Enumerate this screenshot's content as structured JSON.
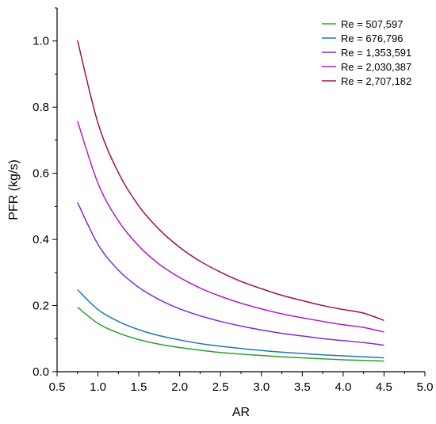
{
  "chart_data": {
    "type": "line",
    "xlabel": "AR",
    "ylabel": "PFR (kg/s)",
    "xlim": [
      0.5,
      5.0
    ],
    "ylim": [
      0.0,
      1.1
    ],
    "xticks": [
      0.5,
      1.0,
      1.5,
      2.0,
      2.5,
      3.0,
      3.5,
      4.0,
      4.5,
      5.0
    ],
    "xtick_labels": [
      "0.5",
      "1.0",
      "1.5",
      "2.0",
      "2.5",
      "3.0",
      "3.5",
      "4.0",
      "4.5",
      "5.0"
    ],
    "yticks": [
      0.0,
      0.2,
      0.4,
      0.6,
      0.8,
      1.0
    ],
    "ytick_labels": [
      "0.0",
      "0.2",
      "0.4",
      "0.6",
      "0.8",
      "1.0"
    ],
    "grid": false,
    "legend_position": "top-right",
    "x": [
      0.75,
      1.0,
      1.25,
      1.5,
      1.75,
      2.0,
      2.25,
      2.5,
      2.75,
      3.0,
      3.25,
      3.5,
      3.75,
      4.0,
      4.25,
      4.5
    ],
    "series": [
      {
        "name": "Re = 507,597",
        "color": "#2ca02c",
        "values": [
          0.195,
          0.146,
          0.117,
          0.097,
          0.083,
          0.073,
          0.065,
          0.058,
          0.053,
          0.049,
          0.045,
          0.042,
          0.039,
          0.036,
          0.034,
          0.032
        ]
      },
      {
        "name": "Re = 676,796",
        "color": "#1f77b4",
        "values": [
          0.248,
          0.188,
          0.152,
          0.127,
          0.109,
          0.096,
          0.085,
          0.077,
          0.07,
          0.064,
          0.059,
          0.055,
          0.051,
          0.048,
          0.045,
          0.042
        ]
      },
      {
        "name": "Re = 1,353,591",
        "color": "#7b2fd6",
        "values": [
          0.512,
          0.385,
          0.307,
          0.255,
          0.218,
          0.19,
          0.169,
          0.152,
          0.138,
          0.126,
          0.116,
          0.108,
          0.1,
          0.094,
          0.088,
          0.08
        ]
      },
      {
        "name": "Re = 2,030,387",
        "color": "#b01fc4",
        "values": [
          0.758,
          0.57,
          0.456,
          0.38,
          0.325,
          0.285,
          0.253,
          0.228,
          0.207,
          0.19,
          0.175,
          0.163,
          0.152,
          0.142,
          0.134,
          0.12
        ]
      },
      {
        "name": "Re = 2,707,182",
        "color": "#a0104a",
        "values": [
          1.002,
          0.752,
          0.602,
          0.501,
          0.43,
          0.376,
          0.334,
          0.301,
          0.273,
          0.251,
          0.231,
          0.215,
          0.2,
          0.188,
          0.177,
          0.155
        ]
      }
    ]
  }
}
